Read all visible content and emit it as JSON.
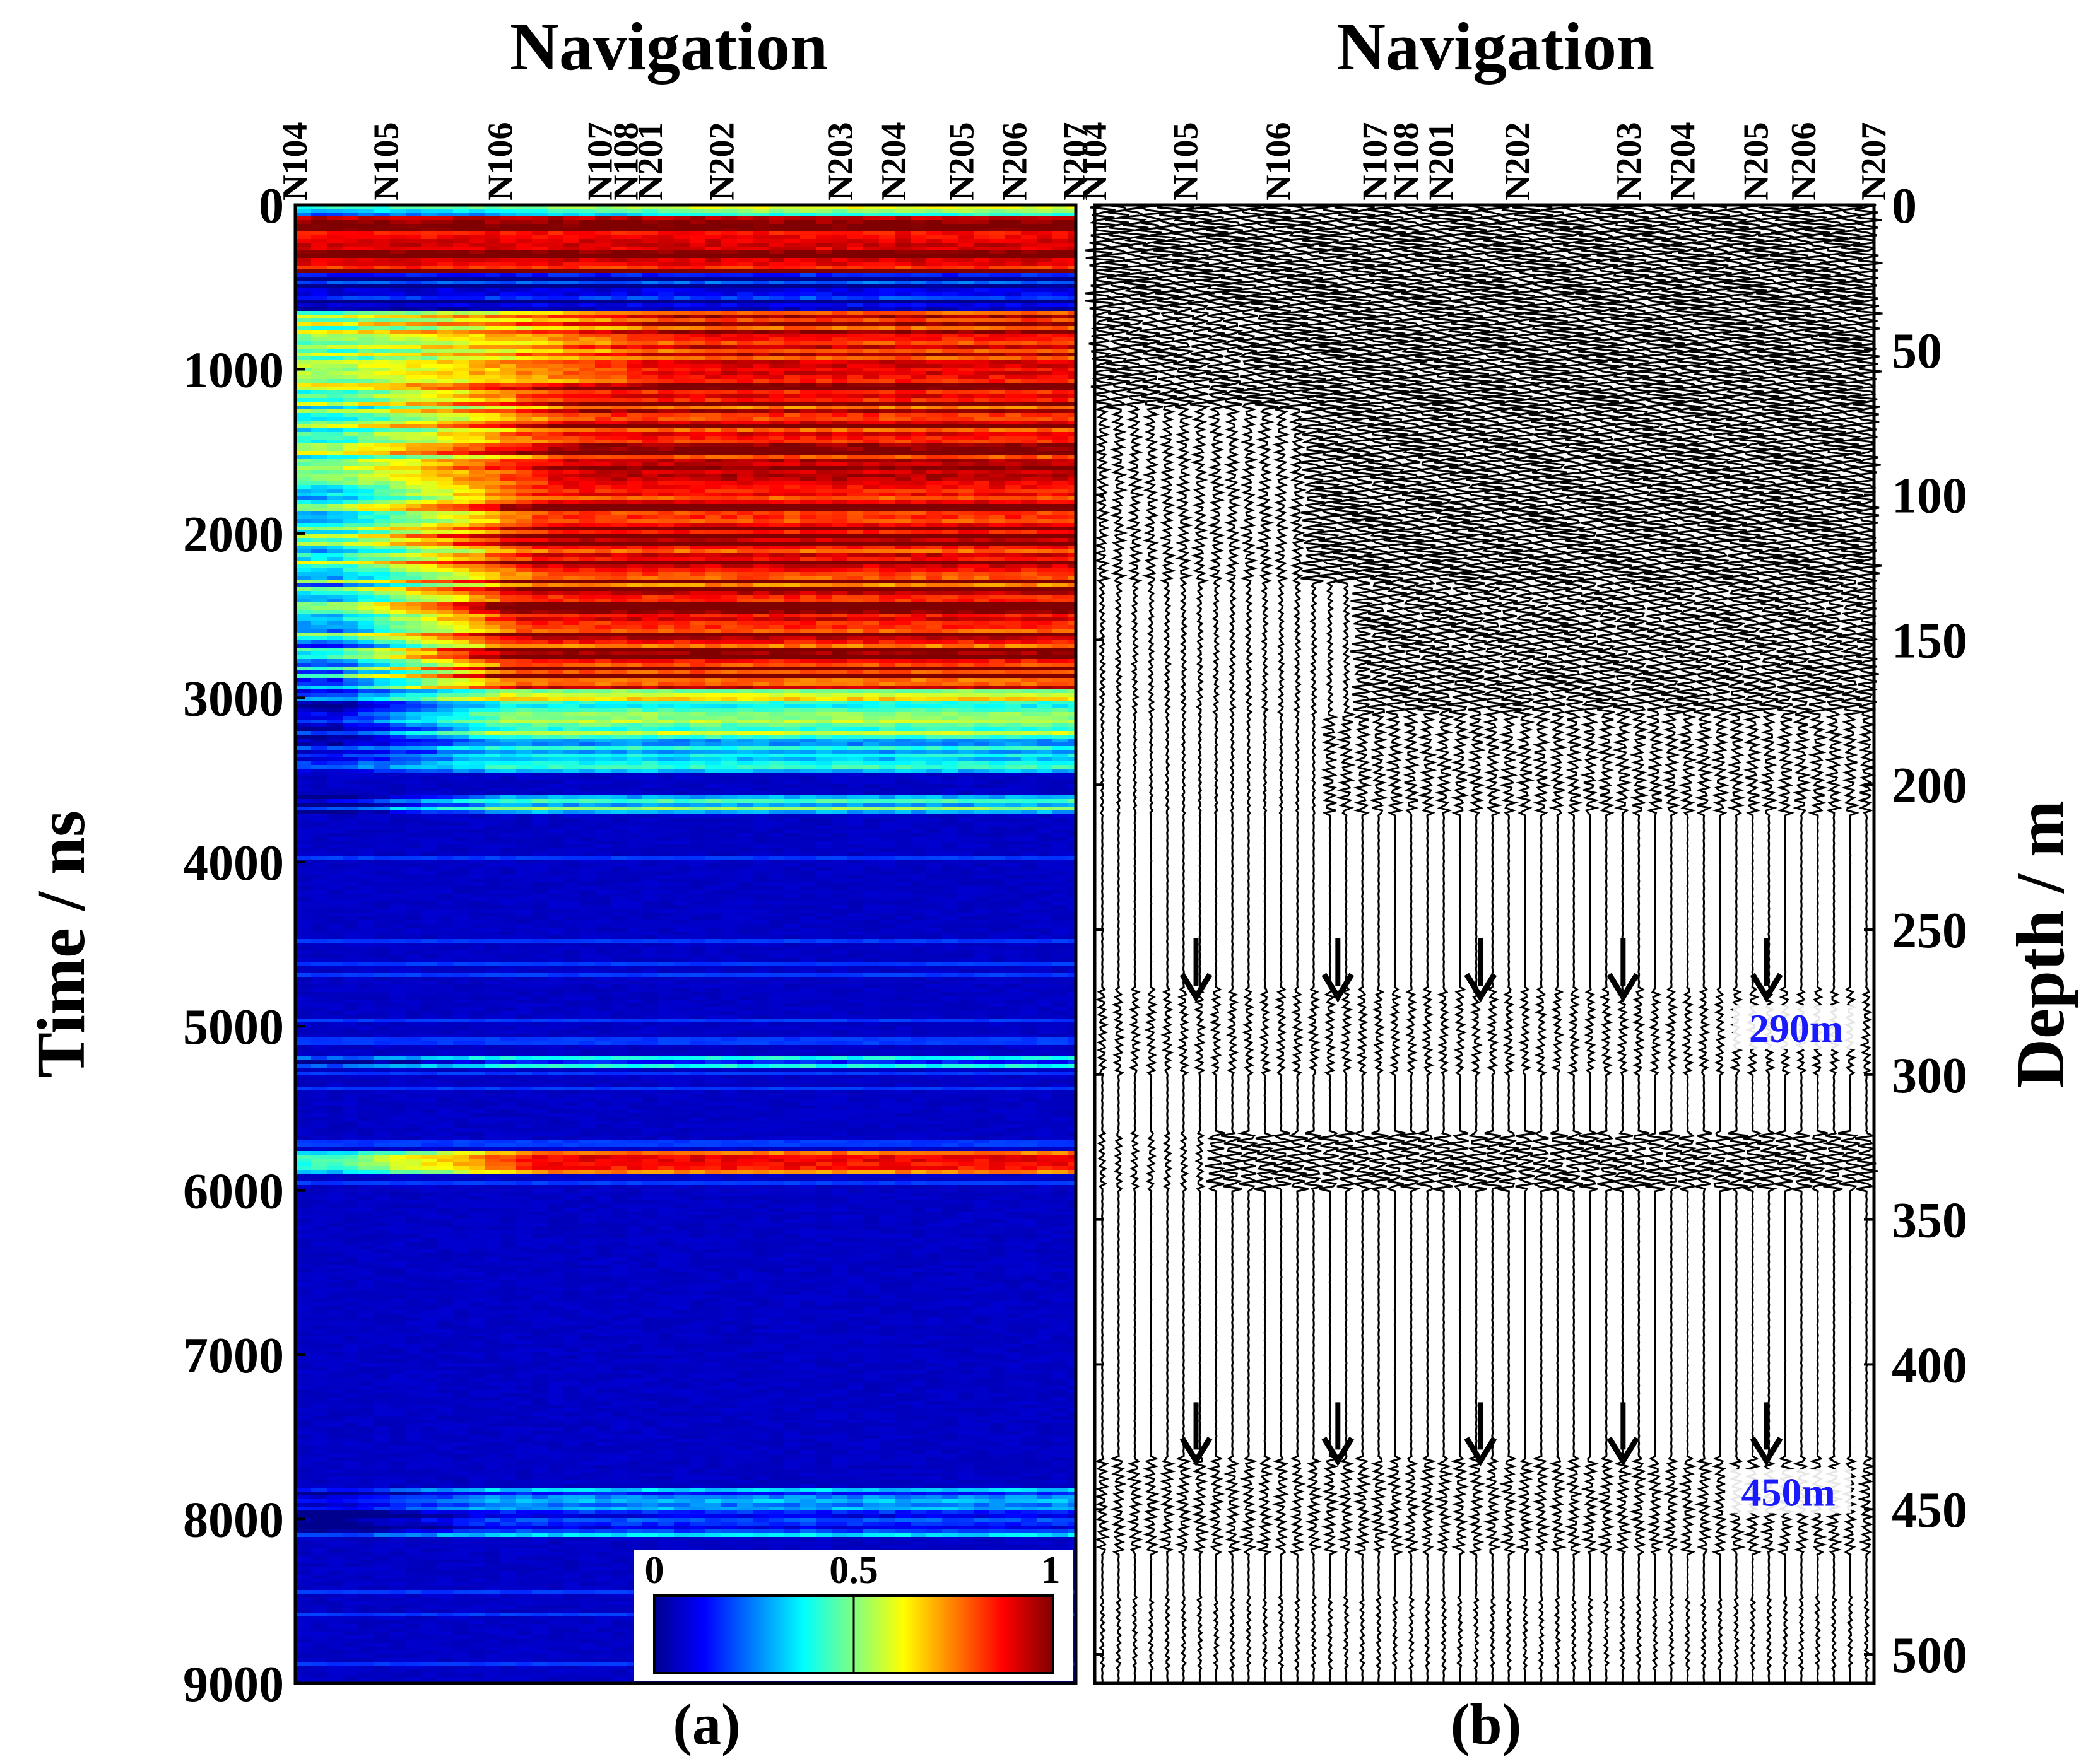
{
  "colors": {
    "frame": "#000000",
    "background": "#ffffff",
    "annotation": "#1a1aff",
    "colormap": [
      "#00008f",
      "#0000ff",
      "#0080ff",
      "#00ffff",
      "#80ff80",
      "#ffff00",
      "#ff8000",
      "#ff0000",
      "#800000"
    ]
  },
  "chart_data": [
    {
      "id": "panel-a",
      "type": "heatmap",
      "title": "Navigation",
      "caption": "(a)",
      "ylabel": "Time / ns",
      "ylim": [
        0,
        9000
      ],
      "yticks": [
        0,
        1000,
        2000,
        3000,
        4000,
        5000,
        6000,
        7000,
        8000,
        9000
      ],
      "stations": [
        {
          "label": "N104",
          "pos": 0.0
        },
        {
          "label": "N105",
          "pos": 0.117
        },
        {
          "label": "N106",
          "pos": 0.263
        },
        {
          "label": "N107",
          "pos": 0.391
        },
        {
          "label": "N108",
          "pos": 0.424
        },
        {
          "label": "N201",
          "pos": 0.455
        },
        {
          "label": "N202",
          "pos": 0.547
        },
        {
          "label": "N203",
          "pos": 0.699
        },
        {
          "label": "N204",
          "pos": 0.767
        },
        {
          "label": "N205",
          "pos": 0.854
        },
        {
          "label": "N206",
          "pos": 0.922
        },
        {
          "label": "N207",
          "pos": 1.0
        }
      ],
      "colorbar": {
        "min": 0,
        "max": 1,
        "ticks": [
          0,
          0.5,
          1
        ],
        "placement": "bottom-right"
      },
      "bands": [
        {
          "t0": 0,
          "t1": 80,
          "value": 0.55,
          "grad": 0.1
        },
        {
          "t0": 80,
          "t1": 420,
          "value": 0.95,
          "grad": 0.0
        },
        {
          "t0": 420,
          "t1": 640,
          "value": 0.08,
          "grad": 0.1
        },
        {
          "t0": 640,
          "t1": 1100,
          "value": 0.93,
          "grad": 0.2
        },
        {
          "t0": 1100,
          "t1": 1700,
          "value": 0.92,
          "grad": 0.55
        },
        {
          "t0": 1700,
          "t1": 2300,
          "value": 0.95,
          "grad": 0.8
        },
        {
          "t0": 2300,
          "t1": 2650,
          "value": 0.9,
          "grad": 1.1
        },
        {
          "t0": 2650,
          "t1": 2950,
          "value": 0.92,
          "grad": 1.3
        },
        {
          "t0": 2950,
          "t1": 3250,
          "value": 0.55,
          "grad": 1.5
        },
        {
          "t0": 3250,
          "t1": 3450,
          "value": 0.3,
          "grad": 1.6
        },
        {
          "t0": 3600,
          "t1": 3720,
          "value": 0.45,
          "grad": 1.6
        },
        {
          "t0": 5180,
          "t1": 5250,
          "value": 0.25,
          "grad": 1.5
        },
        {
          "t0": 5760,
          "t1": 5900,
          "value": 0.78,
          "grad": 0.9
        },
        {
          "t0": 7820,
          "t1": 8100,
          "value": 0.22,
          "grad": 2.0
        }
      ]
    },
    {
      "id": "panel-b",
      "type": "wiggle",
      "title": "Navigation",
      "caption": "(b)",
      "ylabel": "Depth / m",
      "ylim": [
        0,
        510
      ],
      "yticks": [
        0,
        50,
        100,
        150,
        200,
        250,
        300,
        350,
        400,
        450,
        500
      ],
      "trace_count": 48,
      "stations": [
        {
          "label": "N104",
          "pos": 0.0
        },
        {
          "label": "N105",
          "pos": 0.117
        },
        {
          "label": "N106",
          "pos": 0.236
        },
        {
          "label": "N107",
          "pos": 0.36
        },
        {
          "label": "N108",
          "pos": 0.4
        },
        {
          "label": "N201",
          "pos": 0.445
        },
        {
          "label": "N202",
          "pos": 0.543
        },
        {
          "label": "N203",
          "pos": 0.686
        },
        {
          "label": "N204",
          "pos": 0.755
        },
        {
          "label": "N205",
          "pos": 0.849
        },
        {
          "label": "N206",
          "pos": 0.91
        },
        {
          "label": "N207",
          "pos": 1.0
        }
      ],
      "arrow_rows": [
        {
          "depth": 265,
          "xs": [
            0.13,
            0.312,
            0.495,
            0.678,
            0.862
          ]
        },
        {
          "depth": 425,
          "xs": [
            0.13,
            0.312,
            0.495,
            0.678,
            0.862
          ]
        }
      ],
      "annotations": [
        {
          "text": "290m",
          "depth": 287,
          "x": 0.9
        },
        {
          "text": "450m",
          "depth": 447,
          "x": 0.89
        }
      ]
    }
  ]
}
